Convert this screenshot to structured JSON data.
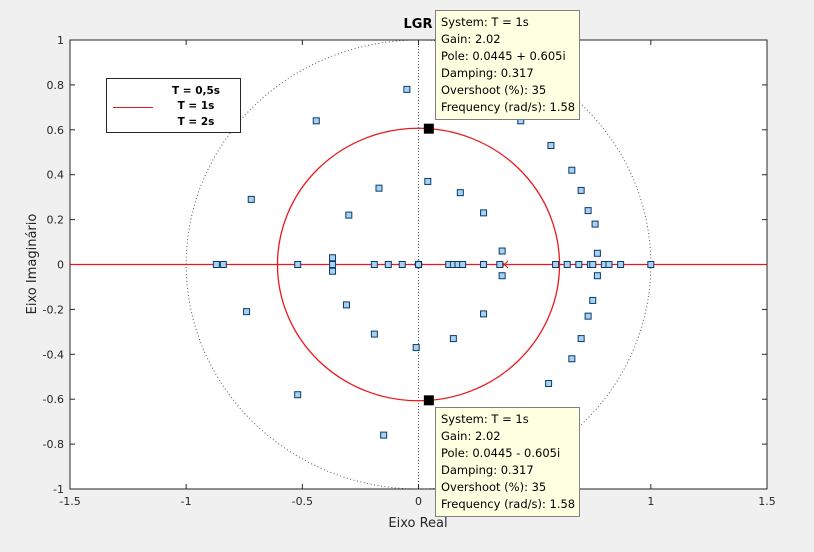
{
  "chart_data": {
    "type": "scatter",
    "title": "LGR",
    "xlabel": "Eixo Real",
    "ylabel": "Eixo Imaginário",
    "xlim": [
      -1.5,
      1.5
    ],
    "ylim": [
      -1,
      1
    ],
    "xticks": [
      "-1.5",
      "-1",
      "-0.5",
      "0",
      "0.5",
      "1",
      "1.5"
    ],
    "yticks": [
      "1",
      "0.8",
      "0.6",
      "0.4",
      "0.2",
      "0",
      "-0.2",
      "-0.4",
      "-0.6",
      "-0.8",
      "-1"
    ],
    "unit_circle": true,
    "legend_position": "top-left",
    "legend": [
      {
        "label": "T = 0,5s",
        "color": "#ffffff"
      },
      {
        "label": "T = 1s",
        "color": "#e8191d"
      },
      {
        "label": "T = 2s",
        "color": "#ffffff"
      }
    ],
    "series": [
      {
        "name": "T = 1s",
        "color": "#e8191d",
        "real_axis_locus": [
          [
            -1.5,
            0
          ],
          [
            1.5,
            0
          ]
        ],
        "circle_center": [
          0.0,
          0.0
        ],
        "circle_radius": 0.607,
        "pole": [
          0.37,
          0
        ],
        "selected_poles": [
          [
            0.0445,
            0.605
          ],
          [
            0.0445,
            -0.605
          ]
        ]
      }
    ],
    "square_points": [
      [
        -0.87,
        0
      ],
      [
        -0.84,
        0
      ],
      [
        -0.52,
        0
      ],
      [
        -0.37,
        0
      ],
      [
        -0.19,
        0
      ],
      [
        -0.13,
        0
      ],
      [
        -0.07,
        0
      ],
      [
        0.0,
        0
      ],
      [
        0.13,
        0
      ],
      [
        0.15,
        0
      ],
      [
        0.17,
        0
      ],
      [
        0.19,
        0
      ],
      [
        0.28,
        0
      ],
      [
        0.35,
        0
      ],
      [
        0.59,
        0
      ],
      [
        0.64,
        0
      ],
      [
        0.69,
        0
      ],
      [
        0.74,
        0
      ],
      [
        0.75,
        0
      ],
      [
        0.8,
        0
      ],
      [
        0.82,
        0
      ],
      [
        0.87,
        0
      ],
      [
        1.0,
        0
      ],
      [
        -0.05,
        0.78
      ],
      [
        -0.44,
        0.64
      ],
      [
        -0.72,
        0.29
      ],
      [
        -0.17,
        0.34
      ],
      [
        -0.3,
        0.22
      ],
      [
        0.04,
        0.37
      ],
      [
        0.18,
        0.32
      ],
      [
        0.28,
        0.23
      ],
      [
        -0.37,
        0.03
      ],
      [
        0.36,
        0.06
      ],
      [
        0.57,
        0.53
      ],
      [
        0.66,
        0.42
      ],
      [
        0.7,
        0.33
      ],
      [
        0.73,
        0.24
      ],
      [
        0.76,
        0.18
      ],
      [
        0.77,
        0.05
      ],
      [
        0.44,
        0.64
      ],
      [
        -0.37,
        -0.03
      ],
      [
        0.36,
        -0.05
      ],
      [
        -0.74,
        -0.21
      ],
      [
        -0.31,
        -0.18
      ],
      [
        -0.19,
        -0.31
      ],
      [
        0.28,
        -0.22
      ],
      [
        0.15,
        -0.33
      ],
      [
        -0.01,
        -0.37
      ],
      [
        -0.52,
        -0.58
      ],
      [
        -0.15,
        -0.76
      ],
      [
        0.56,
        -0.53
      ],
      [
        0.66,
        -0.42
      ],
      [
        0.7,
        -0.33
      ],
      [
        0.73,
        -0.23
      ],
      [
        0.75,
        -0.16
      ],
      [
        0.77,
        -0.05
      ]
    ],
    "datatips": [
      {
        "system": "System: T = 1s",
        "gain": "Gain: 2.02",
        "pole": "Pole: 0.0445 + 0.605i",
        "damping": "Damping: 0.317",
        "overshoot": "Overshoot (%): 35",
        "frequency": "Frequency (rad/s): 1.58"
      },
      {
        "system": "System: T = 1s",
        "gain": "Gain: 2.02",
        "pole": "Pole: 0.0445 - 0.605i",
        "damping": "Damping: 0.317",
        "overshoot": "Overshoot (%): 35",
        "frequency": "Frequency (rad/s): 1.58"
      }
    ]
  }
}
